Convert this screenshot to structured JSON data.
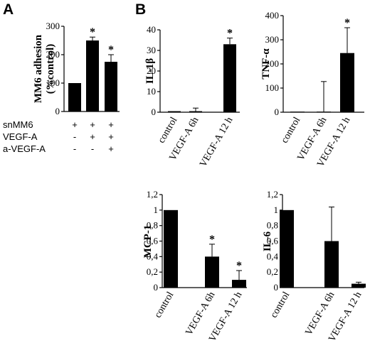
{
  "panels": {
    "A": "A",
    "B": "B"
  },
  "chart_data": [
    {
      "id": "adhesion",
      "type": "bar",
      "ylabel": "MM6 adhesion (%control)",
      "ylabel_lines": [
        "MM6 adhesion",
        "(%control)"
      ],
      "ylim": [
        0,
        300
      ],
      "yticks": [
        "0",
        "100",
        "200",
        "300"
      ],
      "values": [
        100,
        250,
        175
      ],
      "errors": [
        0,
        12,
        25
      ],
      "significant": [
        false,
        true,
        true
      ],
      "conditions": [
        {
          "label": "snMM6",
          "signs": [
            "+",
            "+",
            "+"
          ]
        },
        {
          "label": "VEGF-A",
          "signs": [
            "-",
            "+",
            "+"
          ]
        },
        {
          "label": "a-VEGF-A",
          "signs": [
            "-",
            "-",
            "+"
          ]
        }
      ]
    },
    {
      "id": "il1b",
      "type": "bar",
      "ylabel": "IL-1β",
      "ylim": [
        0,
        40
      ],
      "yticks": [
        "0",
        "10",
        "20",
        "30",
        "40"
      ],
      "categories": [
        "control",
        "VEGF-A 6h",
        "VEGF-A 12 h"
      ],
      "values": [
        0.5,
        0.5,
        33
      ],
      "errors": [
        0,
        1.5,
        3
      ],
      "significant": [
        false,
        false,
        true
      ]
    },
    {
      "id": "tnfa",
      "type": "bar",
      "ylabel": "TNF-α",
      "ylim": [
        0,
        400
      ],
      "yticks": [
        "0",
        "100",
        "200",
        "300",
        "400"
      ],
      "categories": [
        "control",
        "VEGF-A 6h",
        "VEGF-A 12 h"
      ],
      "values": [
        2,
        2,
        245
      ],
      "errors": [
        0,
        125,
        105
      ],
      "significant": [
        false,
        false,
        true
      ]
    },
    {
      "id": "mcp1",
      "type": "bar",
      "ylabel": "MCP-1",
      "ylim": [
        0,
        1.2
      ],
      "yticks": [
        "0",
        "0,2",
        "0,4",
        "0,6",
        "0,8",
        "1",
        "1,2"
      ],
      "categories": [
        "control",
        "VEGF-A 6h",
        "VEGF-A 12 h"
      ],
      "values": [
        1.0,
        0.4,
        0.1
      ],
      "errors": [
        0,
        0.16,
        0.12
      ],
      "significant": [
        false,
        true,
        true
      ]
    },
    {
      "id": "il6",
      "type": "bar",
      "ylabel": "IL-6",
      "ylim": [
        0,
        1.2
      ],
      "yticks": [
        "0",
        "0,2",
        "0,4",
        "0,6",
        "0,8",
        "1",
        "1,2"
      ],
      "categories": [
        "control",
        "VEGF-A 6h",
        "VEGF-A 12 h"
      ],
      "values": [
        1.0,
        0.6,
        0.05
      ],
      "errors": [
        0,
        0.44,
        0.02
      ],
      "significant": [
        false,
        false,
        false
      ]
    }
  ]
}
